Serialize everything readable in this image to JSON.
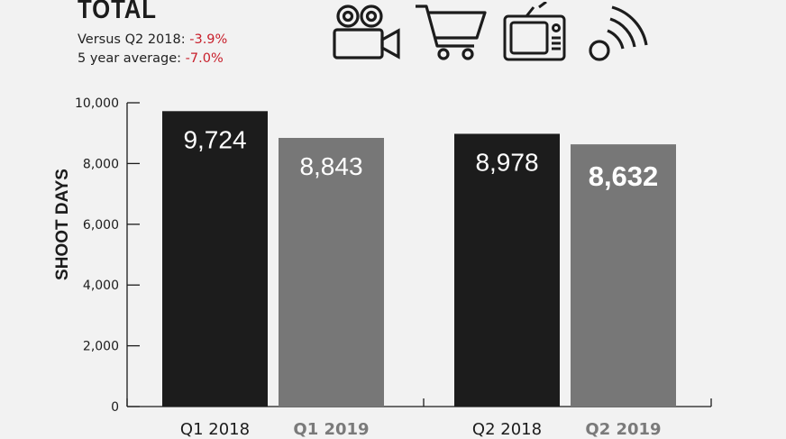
{
  "header": {
    "title": "TOTAL",
    "versus_label": "Versus Q2 2018: ",
    "versus_value": "-3.9%",
    "average_label": "5 year average: ",
    "average_value": "-7.0%"
  },
  "icons": [
    "film-camera-icon",
    "shopping-cart-icon",
    "television-icon",
    "broadcast-signal-icon"
  ],
  "colors": {
    "dark_bar": "#1c1c1c",
    "grey_bar": "#777777",
    "negative": "#c8202c",
    "grey_label": "#7a7a7a"
  },
  "chart_data": {
    "type": "bar",
    "ylabel": "SHOOT DAYS",
    "ylim": [
      0,
      10000
    ],
    "yticks": [
      "0",
      "2,000",
      "4,000",
      "6,000",
      "8,000",
      "10,000"
    ],
    "ytick_values": [
      0,
      2000,
      4000,
      6000,
      8000,
      10000
    ],
    "categories": [
      "Q1 2018",
      "Q1 2019",
      "Q2 2018",
      "Q2 2019"
    ],
    "values": [
      9724,
      8843,
      8978,
      8632
    ],
    "value_labels": [
      "9,724",
      "8,843",
      "8,978",
      "8,632"
    ],
    "grid": false
  }
}
